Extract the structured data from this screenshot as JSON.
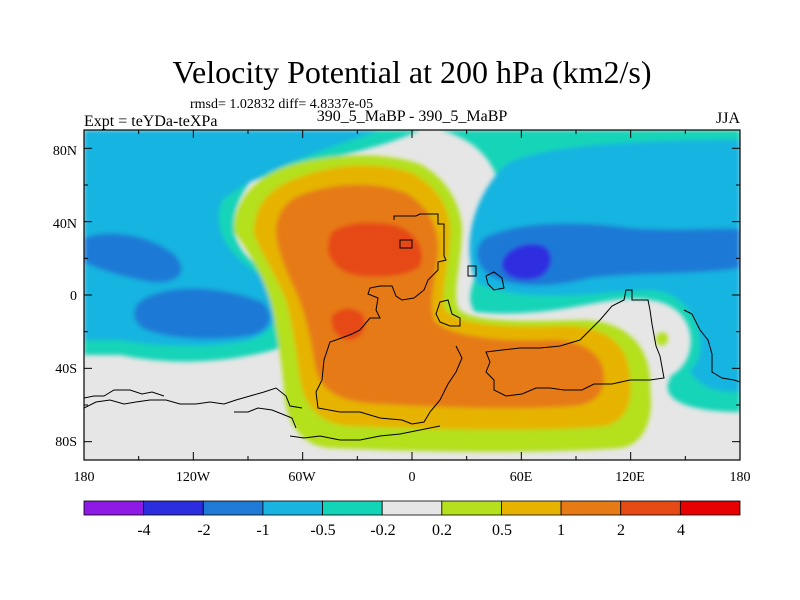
{
  "chart_data": {
    "type": "contour-map",
    "title": "Velocity Potential at 200 hPa (km2/s)",
    "stats": "rmsd= 1.02832  diff= 4.8337e-05",
    "left_label": "Expt = teYDa-teXPa",
    "center_label": "390_5_MaBP - 390_5_MaBP",
    "right_label": "JJA",
    "x_ticks": [
      {
        "value": -180,
        "label": "180"
      },
      {
        "value": -120,
        "label": "120W"
      },
      {
        "value": -60,
        "label": "60W"
      },
      {
        "value": 0,
        "label": "0"
      },
      {
        "value": 60,
        "label": "60E"
      },
      {
        "value": 120,
        "label": "120E"
      },
      {
        "value": 180,
        "label": "180"
      }
    ],
    "y_ticks": [
      {
        "value": 80,
        "label": "80N"
      },
      {
        "value": 40,
        "label": "40N"
      },
      {
        "value": 0,
        "label": "0"
      },
      {
        "value": -40,
        "label": "40S"
      },
      {
        "value": -80,
        "label": "80S"
      }
    ],
    "xlim": [
      -180,
      180
    ],
    "ylim": [
      -90,
      90
    ],
    "contour_levels": [
      "-4",
      "-2",
      "-1",
      "-0.5",
      "-0.2",
      "0.2",
      "0.5",
      "1",
      "2",
      "4"
    ],
    "colors": [
      "#8e1ae6",
      "#2d2de0",
      "#1f7ad6",
      "#19b4e0",
      "#14d4b8",
      "#e6e6e6",
      "#b4e01e",
      "#e6b400",
      "#e67a14",
      "#e64a14",
      "#e60000"
    ]
  }
}
